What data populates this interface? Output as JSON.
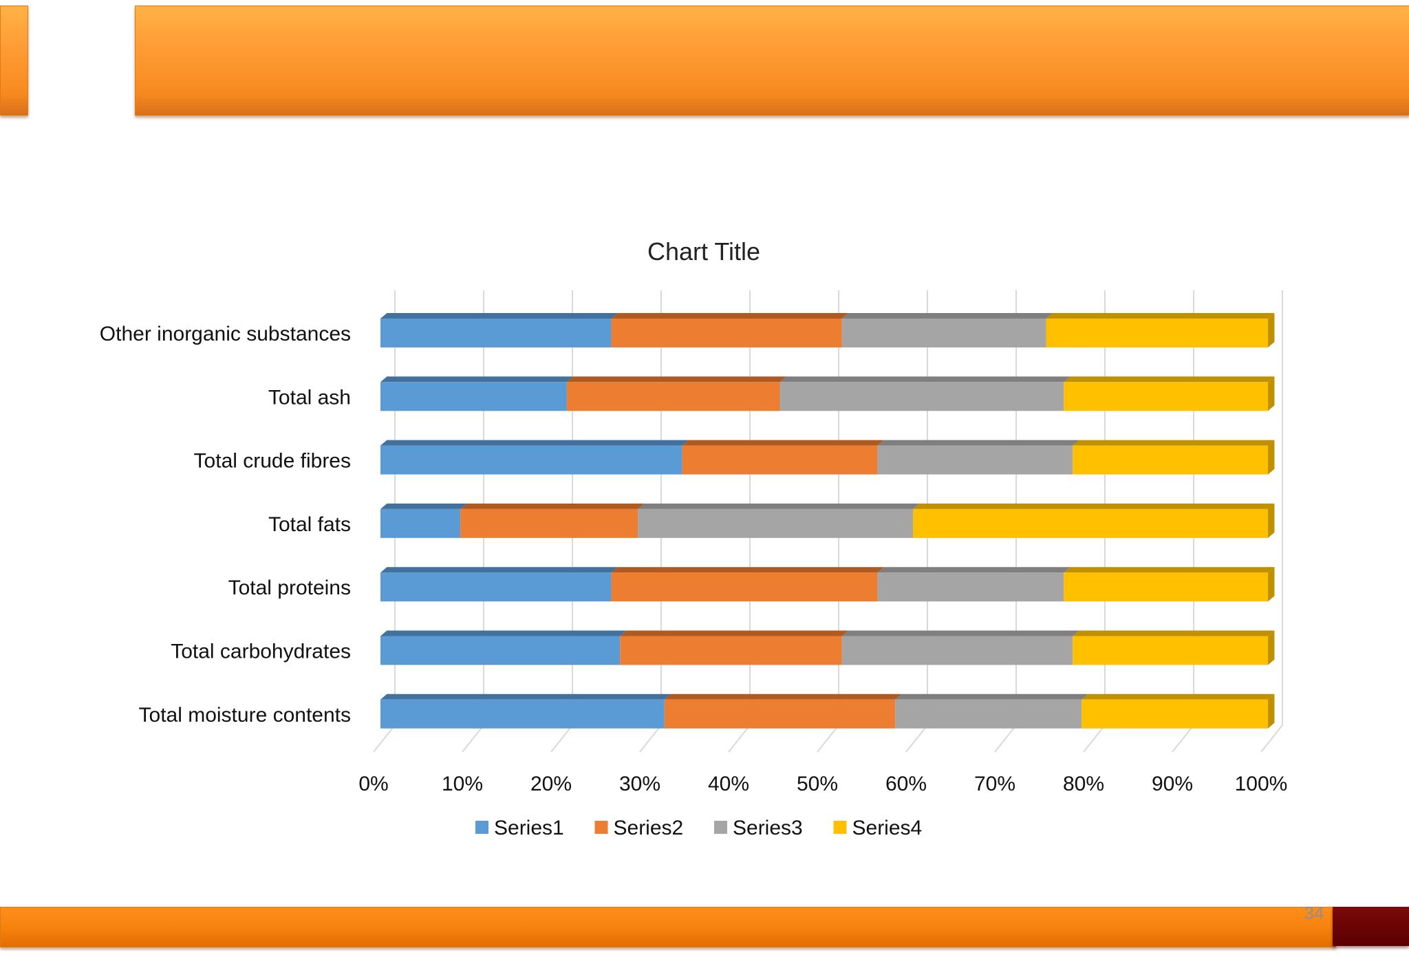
{
  "slide": {
    "page_number": "34"
  },
  "colors": {
    "banner": "#FF9D36",
    "banner_dark_accent": "#5C0000",
    "series": [
      "#5B9BD5",
      "#ED7D31",
      "#A5A5A5",
      "#FFC000"
    ],
    "series_top": [
      "#41719C",
      "#AE5A21",
      "#7F7F7F",
      "#BF9000"
    ]
  },
  "chart_data": {
    "type": "bar",
    "orientation": "horizontal",
    "stacking": "percent",
    "style": "3d",
    "title": "Chart Title",
    "xlabel": "",
    "ylabel": "",
    "xlim": [
      0,
      100
    ],
    "x_ticks": [
      "0%",
      "10%",
      "20%",
      "30%",
      "40%",
      "50%",
      "60%",
      "70%",
      "80%",
      "90%",
      "100%"
    ],
    "grid": true,
    "legend": "bottom",
    "categories": [
      "Other inorganic substances",
      "Total ash",
      "Total crude fibres",
      "Total fats",
      "Total proteins",
      "Total carbohydrates",
      "Total moisture contents"
    ],
    "series": [
      {
        "name": "Series1",
        "values": [
          26,
          21,
          34,
          9,
          26,
          27,
          32
        ]
      },
      {
        "name": "Series2",
        "values": [
          26,
          24,
          22,
          20,
          30,
          25,
          26
        ]
      },
      {
        "name": "Series3",
        "values": [
          23,
          32,
          22,
          31,
          21,
          26,
          21
        ]
      },
      {
        "name": "Series4",
        "values": [
          25,
          23,
          22,
          40,
          23,
          22,
          21
        ]
      }
    ]
  }
}
